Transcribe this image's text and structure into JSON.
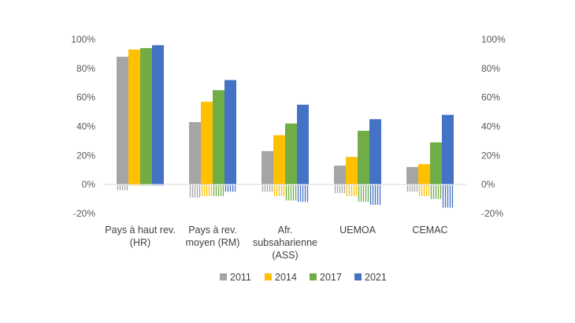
{
  "chart_data": {
    "type": "bar",
    "categories": [
      [
        "Pays à haut rev.",
        "(HR)"
      ],
      [
        "Pays à rev.",
        "moyen (RM)"
      ],
      [
        "Afr.",
        "subsaharienne",
        "(ASS)"
      ],
      [
        "UEMOA"
      ],
      [
        "CEMAC"
      ]
    ],
    "series": [
      {
        "name": "2011",
        "color": "#A5A5A5",
        "values": [
          88,
          43,
          23,
          13,
          12
        ],
        "negative_values": [
          -4,
          -9,
          -5,
          -6,
          -5
        ]
      },
      {
        "name": "2014",
        "color": "#FFC000",
        "values": [
          93,
          57,
          34,
          19,
          14
        ],
        "negative_values": [
          -1,
          -8,
          -8,
          -8,
          -8
        ]
      },
      {
        "name": "2017",
        "color": "#70AD47",
        "values": [
          94,
          65,
          42,
          37,
          29
        ],
        "negative_values": [
          -1,
          -8,
          -11,
          -12,
          -10
        ]
      },
      {
        "name": "2021",
        "color": "#4472C4",
        "values": [
          96,
          72,
          55,
          45,
          48
        ],
        "negative_values": [
          -1,
          -5,
          -12,
          -14,
          -16
        ]
      }
    ],
    "ylim": [
      -20,
      100
    ],
    "y_ticks": [
      "-20%",
      "0%",
      "20%",
      "40%",
      "60%",
      "80%",
      "100%"
    ],
    "secondary_y_ticks": [
      "-20%",
      "0%",
      "20%",
      "40%",
      "60%",
      "80%",
      "100%"
    ],
    "grid": false,
    "legend_position": "bottom"
  }
}
